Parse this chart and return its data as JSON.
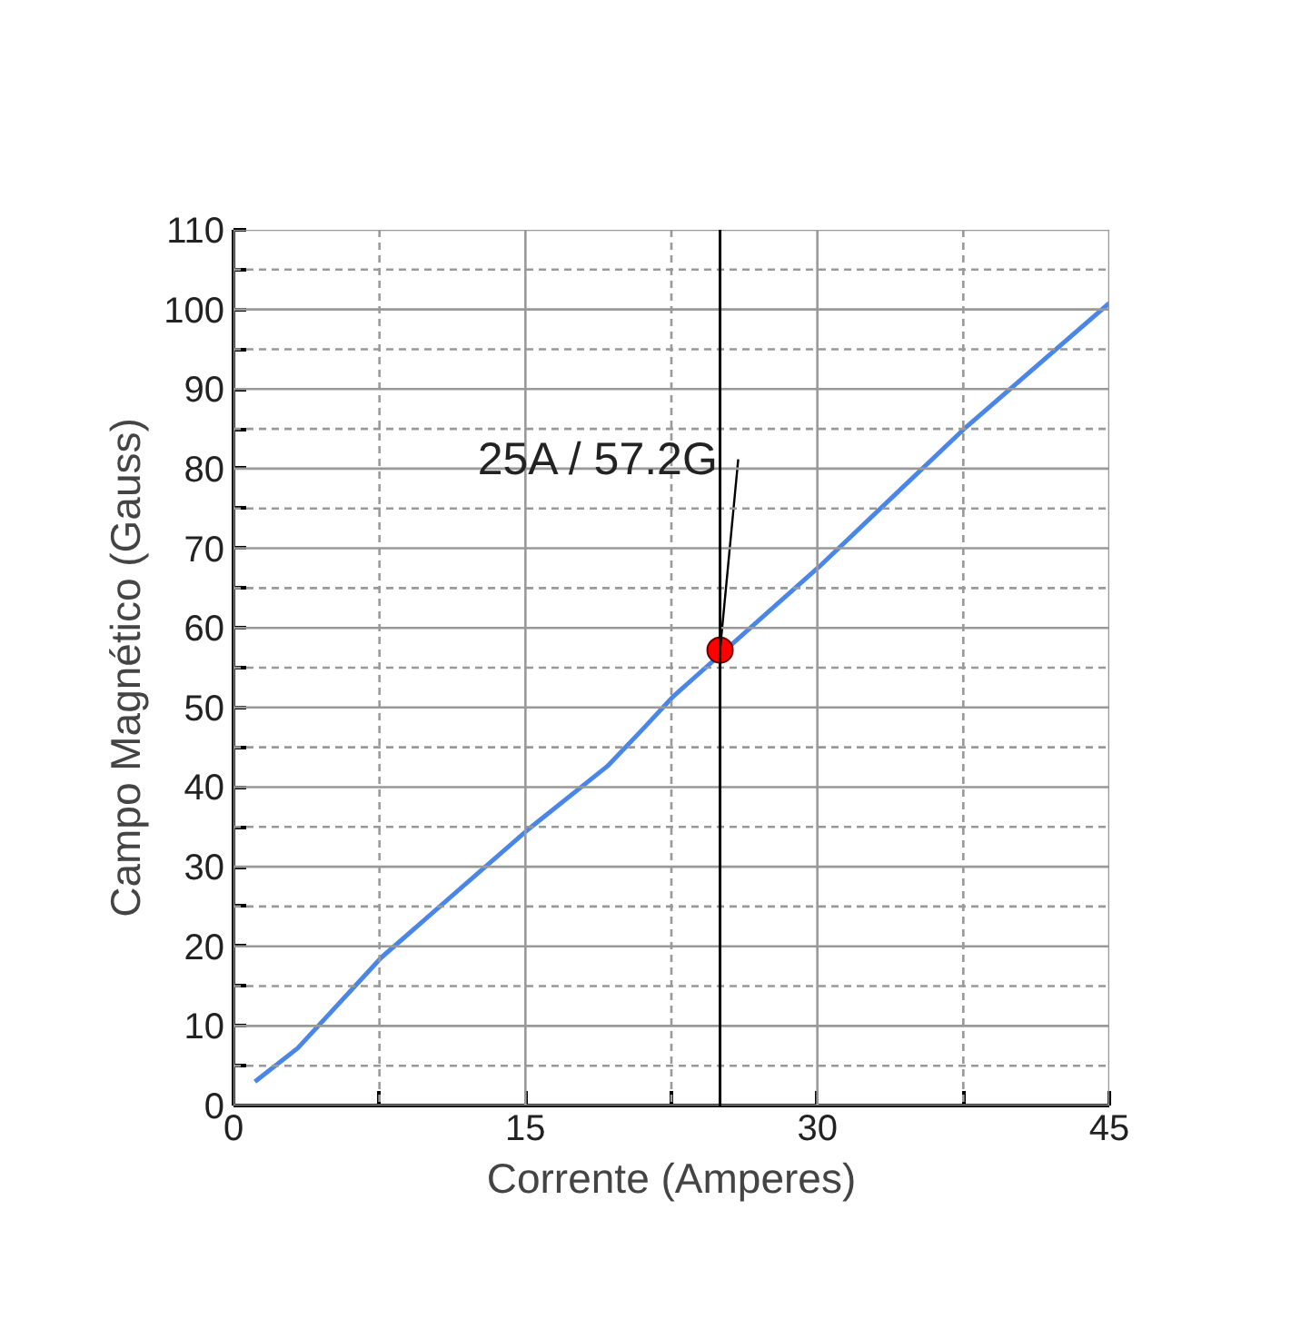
{
  "chart_data": {
    "type": "line",
    "xlabel": "Corrente (Amperes)",
    "ylabel": "Campo Magnético (Gauss)",
    "xlim": [
      0,
      45
    ],
    "ylim": [
      0,
      110
    ],
    "xticks": [
      0,
      {
        "value": 7.5,
        "label": null
      },
      15,
      {
        "value": 22.5,
        "label": null
      },
      30,
      {
        "value": 37.5,
        "label": null
      },
      45
    ],
    "yticks": [
      0,
      {
        "value": 5,
        "label": null
      },
      10,
      {
        "value": 15,
        "label": null
      },
      20,
      {
        "value": 25,
        "label": null
      },
      30,
      {
        "value": 35,
        "label": null
      },
      40,
      {
        "value": 45,
        "label": null
      },
      50,
      {
        "value": 55,
        "label": null
      },
      60,
      {
        "value": 65,
        "label": null
      },
      70,
      {
        "value": 75,
        "label": null
      },
      80,
      {
        "value": 85,
        "label": null
      },
      90,
      {
        "value": 95,
        "label": null
      },
      100,
      {
        "value": 105,
        "label": null
      },
      110
    ],
    "grid": true,
    "marker": "none",
    "line_style": "solid",
    "series": [
      {
        "color": "#4a86e8",
        "x": [
          1.1,
          3.3,
          7.6,
          15.1,
          19.2,
          21.0,
          22.6,
          30.1,
          37.5,
          45
        ],
        "values": [
          3.0,
          7.2,
          18.6,
          34.6,
          42.6,
          47.2,
          51.4,
          67.7,
          84.9,
          100.8
        ]
      },
      {
        "type": "scatter",
        "marker": "circle",
        "color": "#ff0000",
        "x": [
          25
        ],
        "values": [
          57.2
        ]
      }
    ],
    "ref_lines": [
      {
        "axis": "x",
        "value": 25,
        "label": null,
        "color": "#000000",
        "line_style": "solid"
      }
    ],
    "annotations": [
      {
        "text": "25A / 57.2G",
        "x": 25,
        "y": 57.2
      }
    ]
  }
}
